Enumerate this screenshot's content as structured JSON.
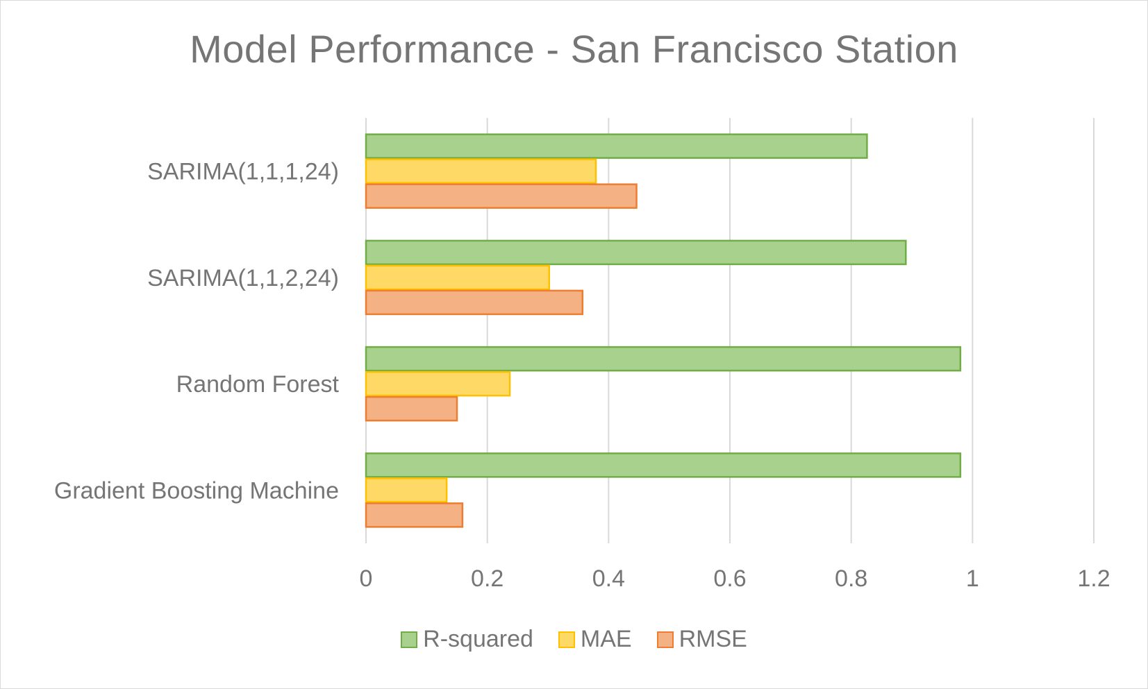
{
  "chart_data": {
    "type": "bar",
    "orientation": "horizontal",
    "title": "Model Performance - San Francisco Station",
    "xlabel": "",
    "ylabel": "",
    "categories": [
      "Gradient Boosting Machine",
      "Random Forest",
      "SARIMA(1,1,2,24)",
      "SARIMA(1,1,1,24)"
    ],
    "series": [
      {
        "name": "R-squared",
        "values": [
          0.98,
          0.98,
          0.89,
          0.826
        ],
        "fill": "#a9d18e",
        "stroke": "#70ad47"
      },
      {
        "name": "MAE",
        "values": [
          0.133,
          0.237,
          0.302,
          0.379
        ],
        "fill": "#ffd966",
        "stroke": "#ffc000"
      },
      {
        "name": "RMSE",
        "values": [
          0.159,
          0.15,
          0.357,
          0.446
        ],
        "fill": "#f4b183",
        "stroke": "#ed7d31"
      }
    ],
    "xlim": [
      0,
      1.2
    ],
    "xticks": [
      "0",
      "0.2",
      "0.4",
      "0.6",
      "0.8",
      "1",
      "1.2"
    ],
    "grid": "vertical",
    "legend_position": "bottom"
  }
}
